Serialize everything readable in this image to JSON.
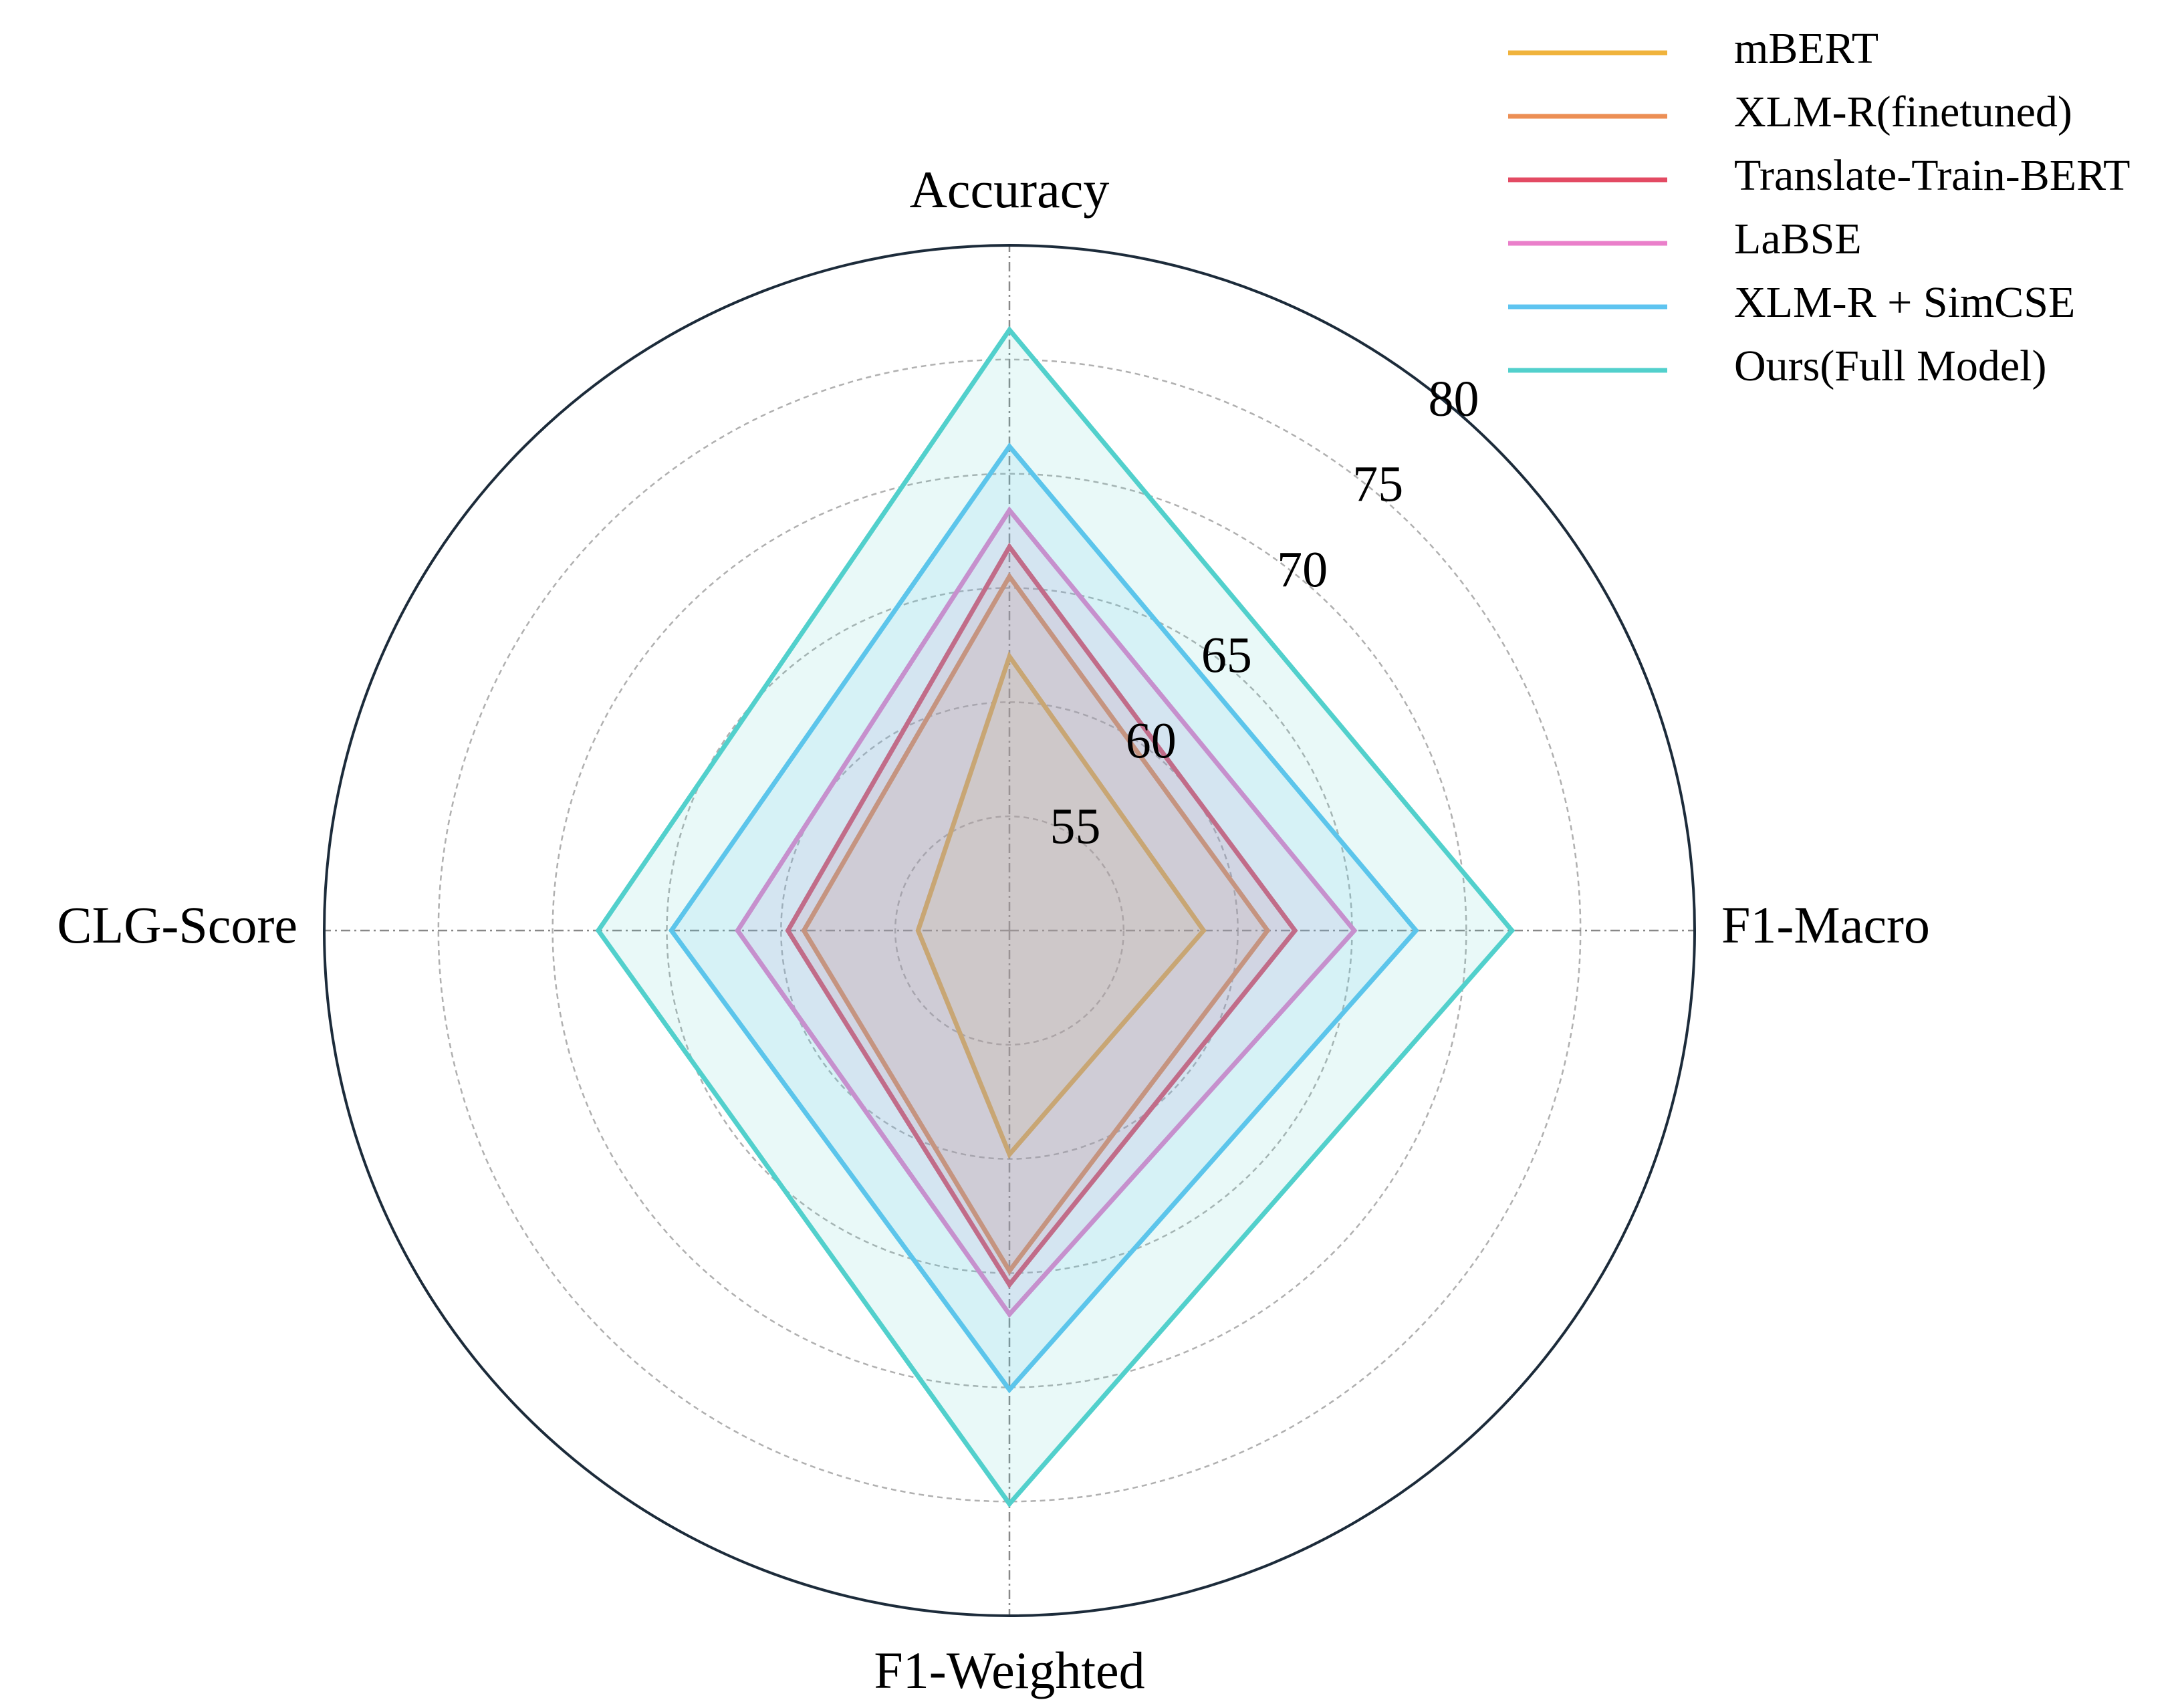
{
  "chart_data": {
    "type": "radar",
    "categories": [
      "Accuracy",
      "F1-Macro",
      "F1-Weighted",
      "CLG-Score"
    ],
    "ylim": [
      50,
      80
    ],
    "yticks": [
      55,
      60,
      65,
      70,
      75,
      80
    ],
    "grid": true,
    "legend": "upper right",
    "series": [
      {
        "name": "mBERT",
        "color": "#f0b33c",
        "values": [
          62.0,
          58.5,
          59.8,
          54.0
        ]
      },
      {
        "name": "XLM-R(finetuned)",
        "color": "#ec8f55",
        "values": [
          65.5,
          61.3,
          64.9,
          59.0
        ]
      },
      {
        "name": "Translate-Train-BERT",
        "color": "#e34a63",
        "values": [
          66.8,
          62.5,
          65.5,
          59.7
        ]
      },
      {
        "name": "LaBSE",
        "color": "#ea7fca",
        "values": [
          68.4,
          65.1,
          66.8,
          61.9
        ]
      },
      {
        "name": "XLM-R + SimCSE",
        "color": "#5ec4f0",
        "values": [
          71.2,
          67.8,
          70.1,
          64.8
        ]
      },
      {
        "name": "Ours(Full Model)",
        "color": "#52d0cc",
        "values": [
          76.3,
          72.0,
          75.1,
          68.0
        ]
      }
    ]
  }
}
